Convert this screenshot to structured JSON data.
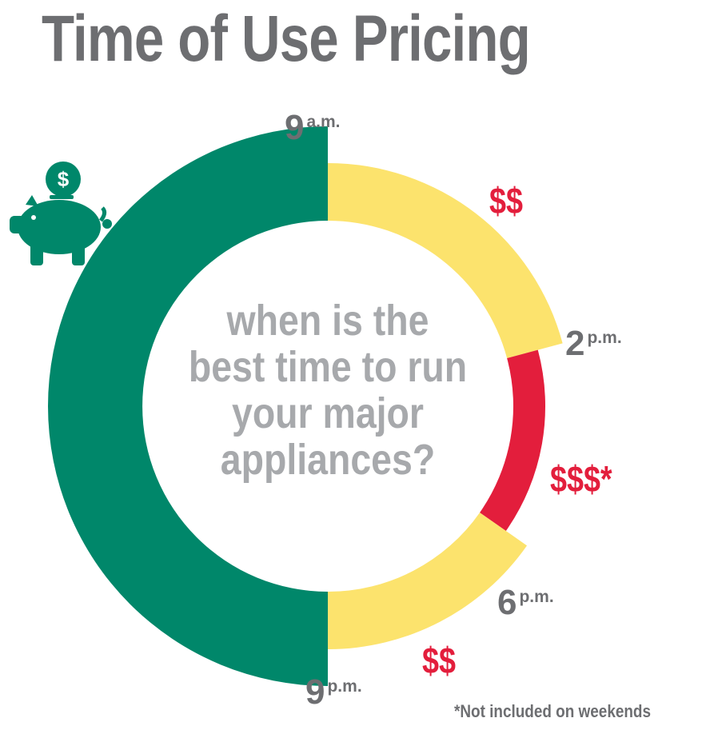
{
  "title": "Time of Use Pricing",
  "center_question": [
    "when is the",
    "best time to run",
    "your major",
    "appliances?"
  ],
  "footnote": "*Not included on weekends",
  "icons": {
    "savings": "piggy-bank-icon",
    "coin_symbol": "$"
  },
  "colors": {
    "off_peak": "#00876a",
    "mid_peak": "#fce36d",
    "on_peak": "#e31e3c",
    "price_text": "#e31e3c",
    "title": "#6d6e71",
    "question": "#a7a9ac"
  },
  "time_labels": [
    {
      "hour": "9",
      "suffix": "a.m."
    },
    {
      "hour": "2",
      "suffix": "p.m."
    },
    {
      "hour": "6",
      "suffix": "p.m."
    },
    {
      "hour": "9",
      "suffix": "p.m."
    }
  ],
  "chart_data": {
    "type": "pie",
    "variant": "donut",
    "segments": [
      {
        "start": "9 a.m.",
        "end": "2 p.m.",
        "price_label": "$$",
        "level": "mid-peak",
        "color": "#fce36d"
      },
      {
        "start": "2 p.m.",
        "end": "6 p.m.",
        "price_label": "$$$*",
        "level": "on-peak",
        "color": "#e31e3c"
      },
      {
        "start": "6 p.m.",
        "end": "9 p.m.",
        "price_label": "$$",
        "level": "mid-peak",
        "color": "#fce36d"
      },
      {
        "start": "9 p.m.",
        "end": "9 a.m.",
        "price_label": "",
        "level": "off-peak",
        "color": "#00876a"
      }
    ]
  }
}
